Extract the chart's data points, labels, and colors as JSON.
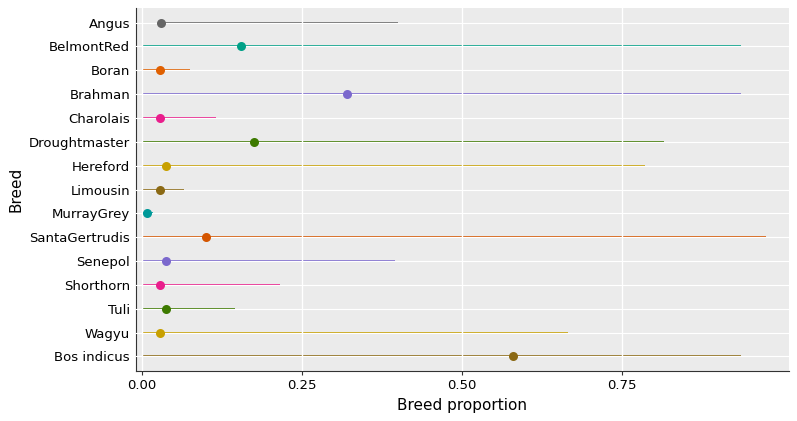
{
  "breeds": [
    "Angus",
    "BelmontRed",
    "Boran",
    "Brahman",
    "Charolais",
    "Droughtmaster",
    "Hereford",
    "Limousin",
    "MurrayGrey",
    "SantaGertrudis",
    "Senepol",
    "Shorthorn",
    "Tuli",
    "Wagyu",
    "Bos indicus"
  ],
  "dot_values": [
    0.03,
    0.155,
    0.028,
    0.32,
    0.028,
    0.175,
    0.038,
    0.028,
    0.008,
    0.1,
    0.038,
    0.028,
    0.038,
    0.028,
    0.58
  ],
  "line_ends": [
    0.4,
    0.935,
    0.075,
    0.935,
    0.115,
    0.815,
    0.785,
    0.065,
    0.018,
    0.975,
    0.395,
    0.215,
    0.145,
    0.665,
    0.935
  ],
  "line_starts": [
    0.028,
    0.0,
    0.0,
    0.0,
    0.0,
    0.0,
    0.0,
    0.0,
    0.0,
    0.0,
    0.0,
    0.0,
    0.0,
    0.0,
    0.0
  ],
  "colors": [
    "#666666",
    "#00A087",
    "#E06000",
    "#7B68CD",
    "#E91E8C",
    "#3D7A00",
    "#C8A000",
    "#8B6914",
    "#009999",
    "#D45500",
    "#7B68CD",
    "#E91E8C",
    "#3D7A00",
    "#C8A000",
    "#8B6914"
  ],
  "xlabel": "Breed proportion",
  "ylabel": "Breed",
  "xlim": [
    -0.01,
    1.01
  ],
  "panel_bg": "#EBEBEB",
  "grid_color": "#FFFFFF",
  "fig_bg": "#FFFFFF",
  "axis_fontsize": 11,
  "tick_fontsize": 9.5,
  "dot_size": 6.5
}
